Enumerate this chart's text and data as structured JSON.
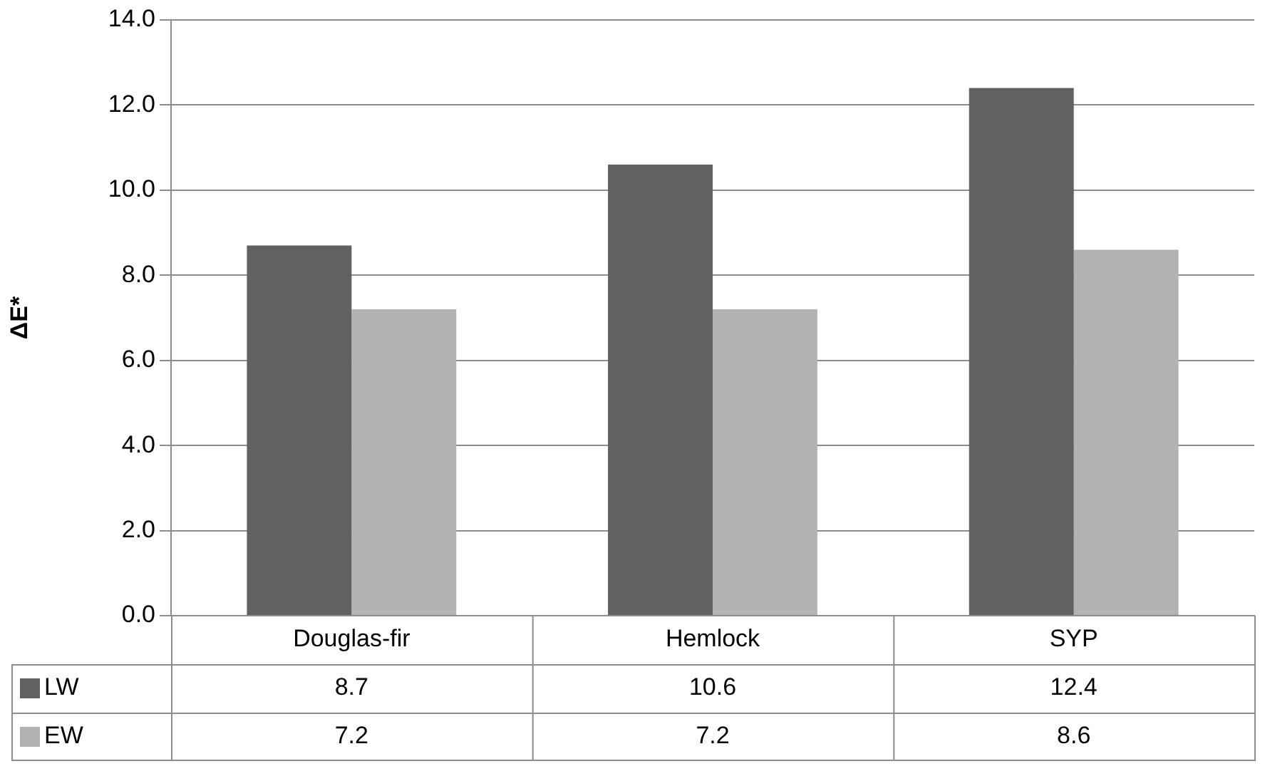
{
  "chart_data": {
    "type": "bar",
    "ylabel": "ΔE*",
    "categories": [
      "Douglas-fir",
      "Hemlock",
      "SYP"
    ],
    "series": [
      {
        "name": "LW",
        "color": "#616161",
        "values": [
          8.7,
          10.6,
          12.4
        ]
      },
      {
        "name": "EW",
        "color": "#b3b3b3",
        "values": [
          7.2,
          7.2,
          8.6
        ]
      }
    ],
    "ylim": [
      0,
      14
    ],
    "yticks": [
      {
        "value": 0,
        "label": "0.0"
      },
      {
        "value": 2,
        "label": "2.0"
      },
      {
        "value": 4,
        "label": "4.0"
      },
      {
        "value": 6,
        "label": "6.0"
      },
      {
        "value": 8,
        "label": "8.0"
      },
      {
        "value": 10,
        "label": "10.0"
      },
      {
        "value": 12,
        "label": "12.0"
      },
      {
        "value": 14,
        "label": "14.0"
      }
    ],
    "grid": "y",
    "legend": "bottom",
    "data_labels": true
  }
}
